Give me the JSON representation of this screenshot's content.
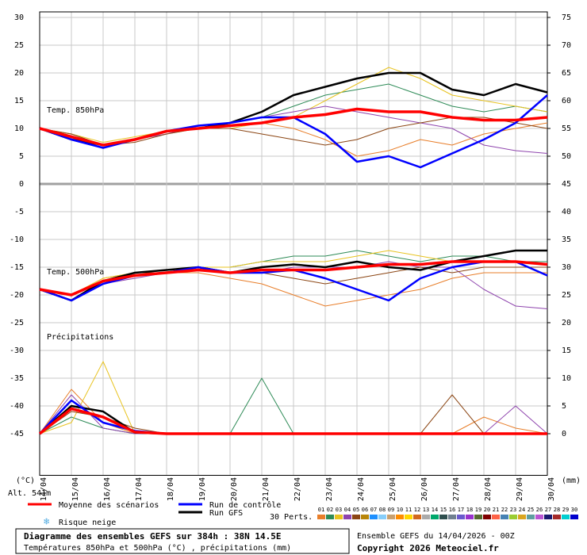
{
  "chart_data": {
    "type": "line",
    "title": "Diagramme des ensembles GEFS sur 384h : 38N 14.5E",
    "subtitle": "Températures 850hPa et 500hPa (°C) , précipitations (mm)",
    "ylabel": "(°C)",
    "y2label": "(mm)",
    "annotations": [
      "Temp. 850hPa",
      "Temp. 500hPa",
      "Précipitations"
    ],
    "x": [
      0,
      24,
      48,
      72,
      96,
      120,
      144,
      168,
      192,
      216,
      240,
      264,
      288,
      312,
      336,
      360,
      384
    ],
    "xlim": [
      0,
      384
    ],
    "xticks": [
      {
        "value": 0,
        "label": "14/04"
      },
      {
        "value": 24,
        "label": "15/04"
      },
      {
        "value": 48,
        "label": "16/04"
      },
      {
        "value": 72,
        "label": "17/04"
      },
      {
        "value": 96,
        "label": "18/04"
      },
      {
        "value": 120,
        "label": "19/04"
      },
      {
        "value": 144,
        "label": "20/04"
      },
      {
        "value": 168,
        "label": "21/04"
      },
      {
        "value": 192,
        "label": "22/04"
      },
      {
        "value": 216,
        "label": "23/04"
      },
      {
        "value": 240,
        "label": "24/04"
      },
      {
        "value": 264,
        "label": "25/04"
      },
      {
        "value": 288,
        "label": "26/04"
      },
      {
        "value": 312,
        "label": "27/04"
      },
      {
        "value": 336,
        "label": "28/04"
      },
      {
        "value": 360,
        "label": "29/04"
      },
      {
        "value": 384,
        "label": "30/04"
      }
    ],
    "ylim": [
      -52.5,
      31
    ],
    "yticks": [
      30,
      25,
      20,
      15,
      10,
      5,
      0,
      -5,
      -10,
      -15,
      -20,
      -25,
      -30,
      -35,
      -40,
      -45
    ],
    "y2lim": [
      -7.5,
      76
    ],
    "y2ticks": [
      75,
      70,
      65,
      60,
      55,
      50,
      45,
      40,
      35,
      30,
      25,
      20,
      15,
      10,
      5,
      0
    ],
    "grid": true,
    "series": [
      {
        "name": "Moyenne des scénarios",
        "color": "#ff0000",
        "t850": [
          10,
          8.5,
          7,
          8,
          9.5,
          10,
          10.5,
          11,
          12,
          12.5,
          13.5,
          13,
          13,
          12,
          11.5,
          11.5,
          12
        ],
        "t500": [
          -19,
          -20,
          -17.5,
          -16.5,
          -16,
          -15.5,
          -16,
          -15.5,
          -15.5,
          -15.5,
          -15,
          -14.5,
          -14.5,
          -14,
          -14,
          -14,
          -14.5
        ],
        "precip": [
          0,
          4.5,
          3,
          0.3,
          0,
          0,
          0,
          0,
          0,
          0,
          0,
          0,
          0,
          0,
          0,
          0,
          0
        ]
      },
      {
        "name": "Run de contrôle",
        "color": "#0000ff",
        "t850": [
          10,
          8,
          6.5,
          8,
          9.5,
          10.5,
          11,
          12,
          12,
          9,
          4,
          5,
          3,
          5.5,
          8,
          11,
          16
        ],
        "t500": [
          -19,
          -21,
          -18,
          -16.5,
          -16,
          -15,
          -16,
          -16,
          -15.5,
          -17,
          -19,
          -21,
          -17,
          -15,
          -14,
          -14,
          -16.5
        ],
        "precip": [
          0,
          6,
          2,
          0.5,
          0,
          0,
          0,
          0,
          0,
          0,
          0,
          0,
          0,
          0,
          0,
          0,
          0
        ]
      },
      {
        "name": "Run GFS",
        "color": "#000000",
        "t850": [
          10,
          8,
          7,
          8,
          9.5,
          10,
          11,
          13,
          16,
          17.5,
          19,
          20,
          20,
          17,
          16,
          18,
          16.5
        ],
        "t500": [
          -19,
          -21,
          -17.5,
          -16,
          -15.5,
          -15,
          -16,
          -15,
          -14.5,
          -15,
          -14,
          -15,
          -15.5,
          -14,
          -13,
          -12,
          -12
        ],
        "precip": [
          0,
          5,
          4,
          0.2,
          0,
          0,
          0,
          0,
          0,
          0,
          0,
          0,
          0,
          0,
          0,
          0,
          0
        ]
      }
    ],
    "altitude": "Alt. 541m",
    "snow": "Risque neige",
    "run": "Ensemble GEFS du 14/04/2026 - 00Z",
    "copyright": "Copyright 2026 Meteociel.fr",
    "perts_label": "30 Perts.",
    "perturbations": [
      {
        "name": "01",
        "color": "#e87e2a",
        "t850": [
          10,
          9,
          7,
          8,
          9,
          10,
          10.5,
          11,
          10,
          8,
          5,
          6,
          8,
          7,
          9,
          10,
          11
        ],
        "t500": [
          -19,
          -20,
          -17,
          -16,
          -16,
          -16,
          -17,
          -18,
          -20,
          -22,
          -21,
          -20,
          -19,
          -17,
          -16,
          -16,
          -16
        ],
        "precip": [
          0,
          8,
          2,
          0,
          0,
          0,
          0,
          0,
          0,
          0,
          0,
          0,
          0,
          0,
          3,
          1,
          0
        ]
      },
      {
        "name": "02",
        "color": "#2e8b57",
        "t850": [
          10,
          8,
          6.5,
          8,
          9.5,
          10,
          11,
          12,
          14,
          16,
          17,
          18,
          16,
          14,
          13,
          14,
          13
        ],
        "t500": [
          -19,
          -21,
          -18,
          -16,
          -15.5,
          -15,
          -15,
          -14,
          -13,
          -13,
          -12,
          -13,
          -14,
          -13,
          -13,
          -14,
          -14
        ],
        "precip": [
          0,
          3,
          1,
          0,
          0,
          0,
          0,
          10,
          0,
          0,
          0,
          0,
          0,
          0,
          0,
          0,
          0
        ]
      },
      {
        "name": "03",
        "color": "#e8c320",
        "t850": [
          10,
          9,
          7.5,
          8.5,
          9.5,
          10,
          10,
          11,
          12,
          15,
          18,
          21,
          19,
          16,
          15,
          14,
          13
        ],
        "t500": [
          -19,
          -20,
          -17,
          -16,
          -16,
          -15,
          -15,
          -14,
          -14,
          -14,
          -13,
          -12,
          -13,
          -14,
          -13,
          -12,
          -12
        ],
        "precip": [
          0,
          2,
          13,
          0,
          0,
          0,
          0,
          0,
          0,
          0,
          0,
          0,
          0,
          0,
          0,
          0,
          0
        ]
      },
      {
        "name": "04",
        "color": "#8e44ad",
        "t850": [
          10,
          8.5,
          7,
          8,
          9,
          10.5,
          11,
          12,
          13,
          14,
          13,
          12,
          11,
          10,
          7,
          6,
          5.5
        ],
        "t500": [
          -19,
          -21,
          -18,
          -17,
          -16,
          -15,
          -16,
          -16,
          -15,
          -15,
          -15,
          -14,
          -15,
          -15,
          -19,
          -22,
          -22.5
        ],
        "precip": [
          0,
          7,
          1,
          0,
          0,
          0,
          0,
          0,
          0,
          0,
          0,
          0,
          0,
          0,
          0,
          5,
          0
        ]
      },
      {
        "name": "05",
        "color": "#8b4513",
        "t850": [
          10,
          9,
          7,
          7.5,
          9,
          10,
          10,
          9,
          8,
          7,
          8,
          10,
          11,
          12,
          12,
          11,
          10
        ],
        "t500": [
          -19,
          -20,
          -17.5,
          -16,
          -16,
          -15,
          -16,
          -16,
          -17,
          -18,
          -17,
          -16,
          -15,
          -16,
          -15,
          -15,
          -15
        ],
        "precip": [
          0,
          4,
          3,
          1,
          0,
          0,
          0,
          0,
          0,
          0,
          0,
          0,
          0,
          7,
          0,
          0,
          0
        ]
      },
      {
        "name": "06",
        "color": "#b8860b"
      },
      {
        "name": "07",
        "color": "#1e90ff"
      },
      {
        "name": "08",
        "color": "#87cefa"
      },
      {
        "name": "09",
        "color": "#c8a070"
      },
      {
        "name": "10",
        "color": "#ff8c00"
      },
      {
        "name": "11",
        "color": "#ffd700"
      },
      {
        "name": "12",
        "color": "#d2691e"
      },
      {
        "name": "13",
        "color": "#aaaaaa"
      },
      {
        "name": "14",
        "color": "#00a86b"
      },
      {
        "name": "15",
        "color": "#2f4f4f"
      },
      {
        "name": "16",
        "color": "#708090"
      },
      {
        "name": "17",
        "color": "#6a5acd"
      },
      {
        "name": "18",
        "color": "#9932cc"
      },
      {
        "name": "19",
        "color": "#556b2f"
      },
      {
        "name": "20",
        "color": "#800000"
      },
      {
        "name": "21",
        "color": "#ff6347"
      },
      {
        "name": "22",
        "color": "#4682b4"
      },
      {
        "name": "23",
        "color": "#9acd32"
      },
      {
        "name": "24",
        "color": "#daa520"
      },
      {
        "name": "25",
        "color": "#5f9ea0"
      },
      {
        "name": "26",
        "color": "#ba55d3"
      },
      {
        "name": "27",
        "color": "#191970"
      },
      {
        "name": "28",
        "color": "#a52a2a"
      },
      {
        "name": "29",
        "color": "#00ced1"
      },
      {
        "name": "30",
        "color": "#0000cd"
      }
    ]
  }
}
